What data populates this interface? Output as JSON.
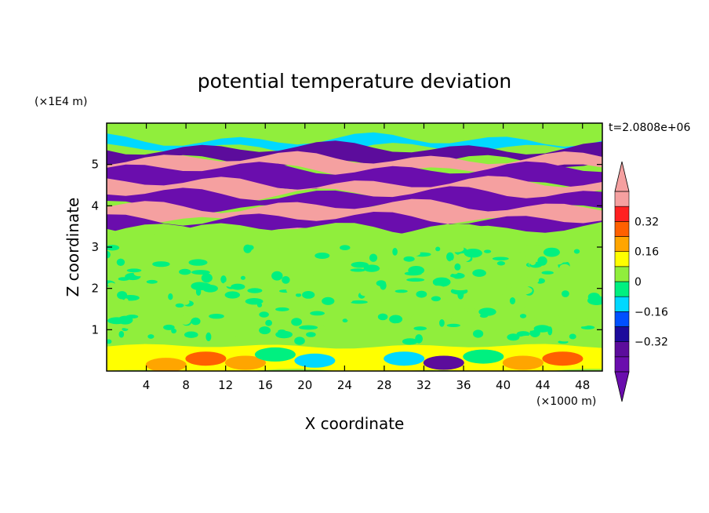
{
  "chart_data": {
    "type": "heatmap",
    "title": "potential temperature deviation",
    "xlabel": "X coordinate",
    "ylabel": "Z coordinate",
    "x_unit": "(×1000 m)",
    "y_unit": "(×1E4 m)",
    "time_label": "t=2.0808e+06",
    "xlim": [
      0,
      50
    ],
    "ylim": [
      0,
      6
    ],
    "x_ticks": [
      4,
      8,
      12,
      16,
      20,
      24,
      28,
      32,
      36,
      40,
      44,
      48
    ],
    "y_ticks": [
      1,
      2,
      3,
      4,
      5
    ],
    "colorbar": {
      "levels": [
        -0.48,
        -0.4,
        -0.32,
        -0.24,
        -0.16,
        -0.08,
        0,
        0.08,
        0.16,
        0.24,
        0.32,
        0.4,
        0.48
      ],
      "tick_labels": [
        "0.32",
        "0.16",
        "0",
        "−0.16",
        "−0.32"
      ],
      "tick_values": [
        0.32,
        0.16,
        0,
        -0.16,
        -0.32
      ],
      "colors": [
        "#6a0dad",
        "#5c0c9c",
        "#1c0b9c",
        "#0050ff",
        "#00d8ff",
        "#00f080",
        "#90ee3c",
        "#ffff00",
        "#ffa500",
        "#ff6000",
        "#ff2020",
        "#f5a0a0"
      ],
      "extend": "both"
    },
    "bands": [
      {
        "y0": 5.55,
        "y1": 5.95,
        "value": 0.02
      },
      {
        "y0": 5.38,
        "y1": 5.6,
        "value": -0.1
      },
      {
        "y0": 5.05,
        "y1": 5.4,
        "value": -0.4
      },
      {
        "y0": 4.85,
        "y1": 5.15,
        "value": 0.45
      },
      {
        "y0": 4.45,
        "y1": 4.9,
        "value": -0.45
      },
      {
        "y0": 4.25,
        "y1": 4.55,
        "value": 0.45
      },
      {
        "y0": 3.95,
        "y1": 4.3,
        "value": -0.45
      },
      {
        "y0": 3.6,
        "y1": 4.0,
        "value": 0.45
      },
      {
        "y0": 3.4,
        "y1": 3.7,
        "value": -0.45
      },
      {
        "y0": 2.9,
        "y1": 3.45,
        "value": 0.06
      },
      {
        "y0": 0.6,
        "y1": 2.9,
        "value": 0.0
      },
      {
        "y0": 0.0,
        "y1": 0.6,
        "value": 0.08
      }
    ]
  }
}
